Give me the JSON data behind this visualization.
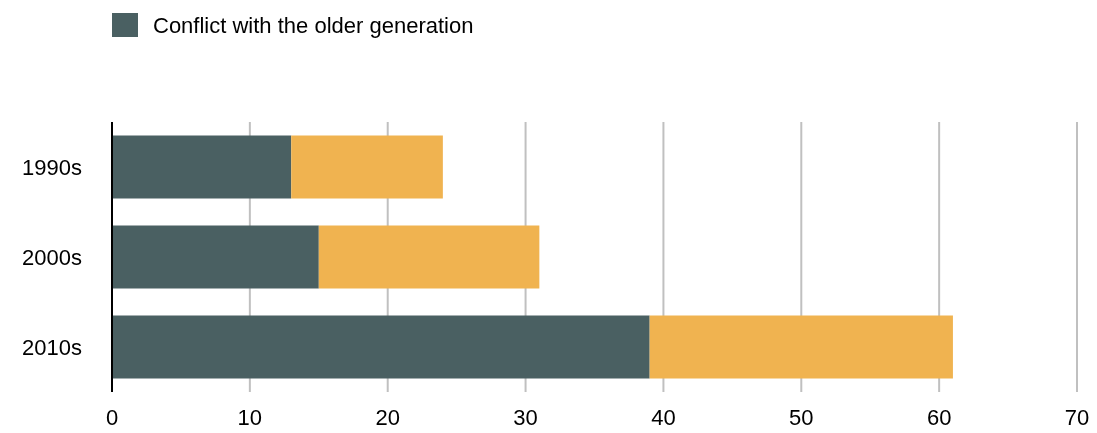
{
  "chart_data": {
    "type": "bar",
    "orientation": "horizontal",
    "stacked": true,
    "categories": [
      "1990s",
      "2000s",
      "2010s"
    ],
    "series": [
      {
        "name": "Conflict with the older generation",
        "color": "#4a6062",
        "values": [
          13,
          15,
          39
        ]
      },
      {
        "color": "#f0b350",
        "values": [
          11,
          16,
          22
        ]
      }
    ],
    "xlim": [
      0,
      70
    ],
    "xticks": [
      0,
      10,
      20,
      30,
      40,
      50,
      60,
      70
    ],
    "grid": "x",
    "legend": "top left"
  }
}
